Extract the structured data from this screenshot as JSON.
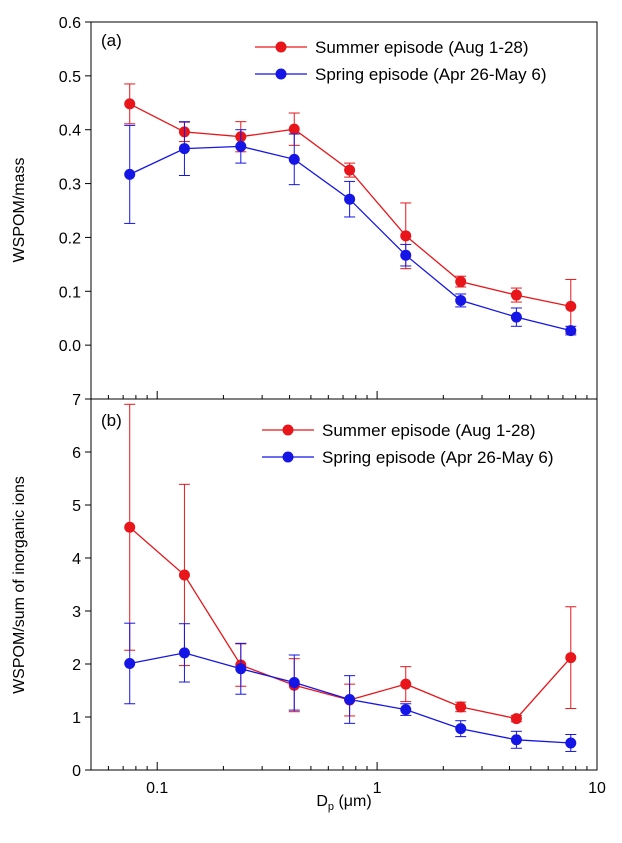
{
  "chart_data": [
    {
      "type": "line",
      "panel_label": "(a)",
      "ylabel": "WSPOM/mass",
      "xscale": "log",
      "xlim": [
        0.05,
        10
      ],
      "ylim": [
        -0.1,
        0.6
      ],
      "yticks": [
        0.0,
        0.1,
        0.2,
        0.3,
        0.4,
        0.5,
        0.6
      ],
      "ytick_labels": [
        "0.0",
        "0.1",
        "0.2",
        "0.3",
        "0.4",
        "0.5",
        "0.6"
      ],
      "legend_position": "top-right",
      "x": [
        0.075,
        0.133,
        0.24,
        0.42,
        0.75,
        1.35,
        2.4,
        4.3,
        7.6
      ],
      "series": [
        {
          "name": "Summer episode (Aug 1-28)",
          "color": "#e8161b",
          "values": [
            0.448,
            0.396,
            0.387,
            0.401,
            0.325,
            0.203,
            0.118,
            0.093,
            0.072
          ],
          "errors": [
            0.037,
            0.018,
            0.028,
            0.03,
            0.013,
            0.061,
            0.01,
            0.013,
            0.05
          ]
        },
        {
          "name": "Spring episode (Apr 26-May 6)",
          "color": "#1515e6",
          "values": [
            0.317,
            0.365,
            0.369,
            0.345,
            0.271,
            0.167,
            0.083,
            0.052,
            0.027
          ],
          "errors": [
            0.091,
            0.05,
            0.031,
            0.047,
            0.033,
            0.02,
            0.012,
            0.017,
            0.008
          ]
        }
      ]
    },
    {
      "type": "line",
      "panel_label": "(b)",
      "ylabel": "WSPOM/sum of inorganic ions",
      "xlabel_main": "D",
      "xlabel_sub": "p",
      "xlabel_rest": " (μm)",
      "xscale": "log",
      "xlim": [
        0.05,
        10
      ],
      "ylim": [
        0,
        7
      ],
      "yticks": [
        0,
        1,
        2,
        3,
        4,
        5,
        6,
        7
      ],
      "ytick_labels": [
        "0",
        "1",
        "2",
        "3",
        "4",
        "5",
        "6",
        "7"
      ],
      "xticks": [
        0.1,
        1,
        10
      ],
      "xtick_labels": [
        "0.1",
        "1",
        "10"
      ],
      "legend_position": "top-right",
      "x": [
        0.075,
        0.133,
        0.24,
        0.42,
        0.75,
        1.35,
        2.4,
        4.3,
        7.6
      ],
      "series": [
        {
          "name": "Summer episode (Aug 1-28)",
          "color": "#e8161b",
          "values": [
            4.58,
            3.68,
            1.98,
            1.6,
            1.32,
            1.62,
            1.19,
            0.97,
            2.12
          ],
          "errors": [
            2.32,
            1.71,
            0.4,
            0.5,
            0.3,
            0.33,
            0.09,
            0.06,
            0.96
          ]
        },
        {
          "name": "Spring episode (Apr 26-May 6)",
          "color": "#1515e6",
          "values": [
            2.01,
            2.21,
            1.91,
            1.65,
            1.33,
            1.14,
            0.78,
            0.57,
            0.51
          ],
          "errors": [
            0.76,
            0.55,
            0.48,
            0.52,
            0.45,
            0.11,
            0.15,
            0.16,
            0.16
          ]
        }
      ]
    }
  ]
}
